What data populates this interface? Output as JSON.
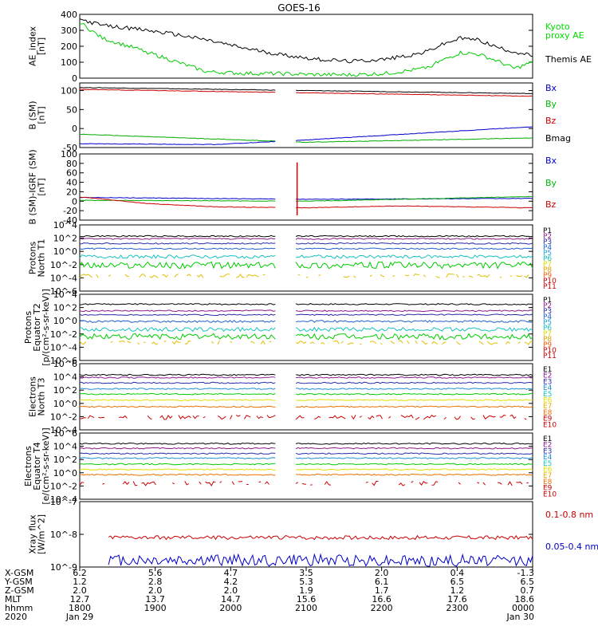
{
  "chart_data": {
    "type": "line",
    "title": "GOES-16",
    "panels": [
      {
        "id": "ae",
        "ylabel": [
          "AE_index",
          "[nT]"
        ],
        "scale": "linear",
        "ylim": [
          0,
          400
        ],
        "ticks": [
          0,
          100,
          200,
          300,
          400
        ],
        "tick_labels": [
          "0",
          "100",
          "200",
          "300",
          "400"
        ],
        "series_labels": [
          {
            "text": "Kyoto",
            "color": "#00dd00"
          },
          {
            "text": "proxy AE",
            "color": "#00dd00"
          },
          {
            "text": "Themis AE",
            "color": "#000000"
          }
        ],
        "series": [
          {
            "name": "Themis AE",
            "color": "#000000",
            "x": [
              0,
              0.05,
              0.12,
              0.2,
              0.28,
              0.36,
              0.44,
              0.52,
              0.6,
              0.68,
              0.76,
              0.8,
              0.84,
              0.88,
              0.92,
              0.96,
              1
            ],
            "values": [
              370,
              330,
              310,
              280,
              240,
              190,
              150,
              120,
              105,
              120,
              160,
              210,
              250,
              240,
              195,
              165,
              140
            ]
          },
          {
            "name": "Kyoto proxy AE",
            "color": "#00cc00",
            "x": [
              0,
              0.05,
              0.12,
              0.2,
              0.28,
              0.36,
              0.44,
              0.52,
              0.6,
              0.68,
              0.76,
              0.8,
              0.84,
              0.88,
              0.92,
              0.96,
              1
            ],
            "values": [
              350,
              250,
              190,
              115,
              40,
              30,
              28,
              22,
              20,
              30,
              60,
              110,
              160,
              150,
              110,
              60,
              100
            ]
          }
        ]
      },
      {
        "id": "bsm",
        "ylabel": [
          "B (SM)",
          "[nT]"
        ],
        "scale": "linear",
        "ylim": [
          -50,
          120
        ],
        "ticks": [
          -50,
          0,
          50,
          100
        ],
        "tick_labels": [
          "-50",
          "0",
          "50",
          "100"
        ],
        "series_labels": [
          {
            "text": "Bx",
            "color": "#0000cc"
          },
          {
            "text": "By",
            "color": "#00bb00"
          },
          {
            "text": "Bz",
            "color": "#cc0000"
          },
          {
            "text": "Bmag",
            "color": "#000000"
          }
        ],
        "gap": [
          0.435,
          0.475
        ],
        "series": [
          {
            "name": "Bmag",
            "color": "#000000",
            "x": [
              0,
              1
            ],
            "values": [
              108,
              92
            ]
          },
          {
            "name": "Bz",
            "color": "#cc0000",
            "x": [
              0,
              1
            ],
            "values": [
              103,
              85
            ]
          },
          {
            "name": "By",
            "color": "#00aa00",
            "x": [
              0,
              0.5,
              1
            ],
            "values": [
              -15,
              -36,
              -25
            ]
          },
          {
            "name": "Bx",
            "color": "#0000cc",
            "x": [
              0,
              0.3,
              0.5,
              1
            ],
            "values": [
              -40,
              -42,
              -30,
              5
            ]
          }
        ]
      },
      {
        "id": "bigrf",
        "ylabel": [
          "B (SM)-IGRF (SM)",
          "[nT]"
        ],
        "scale": "linear",
        "ylim": [
          -40,
          100
        ],
        "ticks": [
          -40,
          -20,
          0,
          20,
          40,
          60,
          80,
          100
        ],
        "tick_labels": [
          "-40",
          "-20",
          "0",
          "20",
          "40",
          "60",
          "80",
          "100"
        ],
        "series_labels": [
          {
            "text": "Bx",
            "color": "#0000cc"
          },
          {
            "text": "By",
            "color": "#00bb00"
          },
          {
            "text": "Bz",
            "color": "#cc0000"
          }
        ],
        "gap": [
          0.435,
          0.475
        ],
        "series": [
          {
            "name": "Bx",
            "color": "#0000cc",
            "x": [
              0,
              0.5,
              1
            ],
            "values": [
              8,
              4,
              6
            ]
          },
          {
            "name": "By",
            "color": "#00aa00",
            "x": [
              0,
              0.5,
              1
            ],
            "values": [
              2,
              0,
              10
            ]
          },
          {
            "name": "Bz",
            "color": "#cc0000",
            "x": [
              0,
              0.15,
              0.3,
              0.5,
              0.7,
              1
            ],
            "values": [
              9,
              -5,
              -12,
              -14,
              -10,
              -14
            ]
          }
        ],
        "spike": {
          "x": 0.48,
          "values": [
            82,
            -30
          ],
          "color": "#cc0000"
        }
      },
      {
        "id": "pn",
        "ylabel": [
          "Protons",
          "North T1"
        ],
        "scale": "log",
        "ylim": [
          -6,
          4
        ],
        "ticks": [
          4,
          2,
          0,
          -2,
          -4,
          -6
        ],
        "tick_labels": [
          "10^4",
          "10^2",
          "10^0",
          "10^-2",
          "10^-4",
          "10^-6"
        ],
        "channels": [
          {
            "label": "P1",
            "color": "#000000"
          },
          {
            "label": "P2",
            "color": "#8a1a8a"
          },
          {
            "label": "P3",
            "color": "#2a2aaa"
          },
          {
            "label": "P4",
            "color": "#1f5fd0"
          },
          {
            "label": "P5",
            "color": "#1fa0e0"
          },
          {
            "label": "P6",
            "color": "#18c0c0"
          },
          {
            "label": "P7",
            "color": "#e0e000"
          },
          {
            "label": "P8",
            "color": "#e0a000"
          },
          {
            "label": "P9",
            "color": "#ee6000"
          },
          {
            "label": "P10",
            "color": "#cc0000"
          },
          {
            "label": "P11",
            "color": "#cc0000"
          }
        ],
        "gap": [
          0.435,
          0.475
        ],
        "series": [
          {
            "name": "P1",
            "color": "#000000",
            "level": 2.3,
            "jitter": 0.1
          },
          {
            "name": "P2",
            "color": "#8a1a8a",
            "level": 1.9,
            "jitter": 0.1
          },
          {
            "name": "P3",
            "color": "#2a2aaa",
            "level": 1.2,
            "jitter": 0.1
          },
          {
            "name": "P4",
            "color": "#1f5fd0",
            "level": 0.4,
            "jitter": 0.1
          },
          {
            "name": "P5",
            "color": "#18c0c0",
            "level": -0.8,
            "jitter": 0.25
          },
          {
            "name": "P6",
            "color": "#00cc00",
            "level": -2.1,
            "jitter": 0.5
          },
          {
            "name": "P7",
            "color": "#e0c000",
            "level": -3.7,
            "jitter": 0.3,
            "sparse": true
          }
        ]
      },
      {
        "id": "pe",
        "ylabel": [
          "Protons",
          "Equator T2",
          "[p/(cm²-s-sr-keV)]"
        ],
        "scale": "log",
        "ylim": [
          -6,
          4
        ],
        "ticks": [
          4,
          2,
          0,
          -2,
          -4,
          -6
        ],
        "tick_labels": [
          "10^4",
          "10^2",
          "10^0",
          "10^-2",
          "10^-4",
          "10^-6"
        ],
        "channels": [
          {
            "label": "P1",
            "color": "#000000"
          },
          {
            "label": "P2",
            "color": "#8a1a8a"
          },
          {
            "label": "P3",
            "color": "#2a2aaa"
          },
          {
            "label": "P4",
            "color": "#1f5fd0"
          },
          {
            "label": "P5",
            "color": "#1fa0e0"
          },
          {
            "label": "P6",
            "color": "#18c0c0"
          },
          {
            "label": "P7",
            "color": "#e0e000"
          },
          {
            "label": "P8",
            "color": "#e0a000"
          },
          {
            "label": "P9",
            "color": "#ee6000"
          },
          {
            "label": "P10",
            "color": "#cc0000"
          },
          {
            "label": "P11",
            "color": "#cc0000"
          }
        ],
        "gap": [
          0.435,
          0.475
        ],
        "series": [
          {
            "name": "P1",
            "color": "#000000",
            "level": 2.5,
            "jitter": 0.1
          },
          {
            "name": "P2",
            "color": "#8a1a8a",
            "level": 1.5,
            "jitter": 0.1
          },
          {
            "name": "P3",
            "color": "#2a2aaa",
            "level": 0.9,
            "jitter": 0.1
          },
          {
            "name": "P4",
            "color": "#1f5fd0",
            "level": -0.1,
            "jitter": 0.15
          },
          {
            "name": "P5",
            "color": "#18c0c0",
            "level": -1.3,
            "jitter": 0.3
          },
          {
            "name": "P6",
            "color": "#00cc00",
            "level": -2.4,
            "jitter": 0.45
          },
          {
            "name": "P7",
            "color": "#e0c000",
            "level": -3.3,
            "jitter": 0.3,
            "sparse": true
          }
        ]
      },
      {
        "id": "en",
        "ylabel": [
          "Electrons",
          "North T3"
        ],
        "scale": "log",
        "ylim": [
          -4,
          6
        ],
        "ticks": [
          6,
          4,
          2,
          0,
          -2,
          -4
        ],
        "tick_labels": [
          "10^6",
          "10^4",
          "10^2",
          "10^0",
          "10^-2",
          "10^-4"
        ],
        "channels": [
          {
            "label": "E1",
            "color": "#000000"
          },
          {
            "label": "E2",
            "color": "#8a1a8a"
          },
          {
            "label": "E3",
            "color": "#2a2aaa"
          },
          {
            "label": "E4",
            "color": "#1f8fd0"
          },
          {
            "label": "E5",
            "color": "#18c0c0"
          },
          {
            "label": "E6",
            "color": "#e0e000"
          },
          {
            "label": "E7",
            "color": "#e0b000"
          },
          {
            "label": "E8",
            "color": "#ee7000"
          },
          {
            "label": "E9",
            "color": "#cc0000"
          },
          {
            "label": "E10",
            "color": "#cc0000"
          }
        ],
        "gap": [
          0.435,
          0.475
        ],
        "series": [
          {
            "name": "E1",
            "color": "#000000",
            "level": 4.3,
            "jitter": 0.1
          },
          {
            "name": "E2",
            "color": "#8a1a8a",
            "level": 3.9,
            "jitter": 0.1
          },
          {
            "name": "E3",
            "color": "#2a2aaa",
            "level": 3.1,
            "jitter": 0.1
          },
          {
            "name": "E4",
            "color": "#1f8fd0",
            "level": 2.2,
            "jitter": 0.1
          },
          {
            "name": "E5",
            "color": "#00cc00",
            "level": 1.4,
            "jitter": 0.1
          },
          {
            "name": "E6",
            "color": "#e0e000",
            "level": 0.5,
            "jitter": 0.1
          },
          {
            "name": "E7",
            "color": "#ee7000",
            "level": -0.5,
            "jitter": 0.1
          },
          {
            "name": "E8",
            "color": "#cc0000",
            "level": -2.1,
            "jitter": 0.35,
            "sparse": true
          }
        ]
      },
      {
        "id": "ee",
        "ylabel": [
          "Electrons",
          "Equator T4",
          "[e/(cm²-s-sr-keV)]"
        ],
        "scale": "log",
        "ylim": [
          -4,
          6
        ],
        "ticks": [
          6,
          4,
          2,
          0,
          -2,
          -4
        ],
        "tick_labels": [
          "10^6",
          "10^4",
          "10^2",
          "10^0",
          "10^-2",
          "10^-4"
        ],
        "channels": [
          {
            "label": "E1",
            "color": "#000000"
          },
          {
            "label": "E2",
            "color": "#8a1a8a"
          },
          {
            "label": "E3",
            "color": "#2a2aaa"
          },
          {
            "label": "E4",
            "color": "#1f8fd0"
          },
          {
            "label": "E5",
            "color": "#18c0c0"
          },
          {
            "label": "E6",
            "color": "#e0e000"
          },
          {
            "label": "E7",
            "color": "#e0b000"
          },
          {
            "label": "E8",
            "color": "#ee7000"
          },
          {
            "label": "E9",
            "color": "#cc0000"
          },
          {
            "label": "E10",
            "color": "#cc0000"
          }
        ],
        "gap": [
          0.435,
          0.475
        ],
        "series": [
          {
            "name": "E1",
            "color": "#000000",
            "level": 4.4,
            "jitter": 0.1
          },
          {
            "name": "E2",
            "color": "#8a1a8a",
            "level": 3.7,
            "jitter": 0.1
          },
          {
            "name": "E3",
            "color": "#2a2aaa",
            "level": 2.9,
            "jitter": 0.1
          },
          {
            "name": "E4",
            "color": "#1f8fd0",
            "level": 2.2,
            "jitter": 0.1
          },
          {
            "name": "E5",
            "color": "#00cc00",
            "level": 1.3,
            "jitter": 0.1
          },
          {
            "name": "E6",
            "color": "#e0e000",
            "level": 0.5,
            "jitter": 0.1
          },
          {
            "name": "E7",
            "color": "#ee7000",
            "level": -0.3,
            "jitter": 0.1
          },
          {
            "name": "E8",
            "color": "#cc0000",
            "level": -1.6,
            "jitter": 0.35,
            "sparse": true
          }
        ]
      },
      {
        "id": "xray",
        "ylabel": [
          "Xray flux",
          "[W/m^2]"
        ],
        "scale": "log",
        "ylim": [
          -9,
          -7
        ],
        "ticks": [
          -7,
          -8,
          -9
        ],
        "tick_labels": [
          "10^-7",
          "10^-8",
          "10^-9"
        ],
        "series_labels": [
          {
            "text": "0.1-0.8 nm",
            "color": "#cc0000"
          },
          {
            "text": "0.05-0.4 nm",
            "color": "#0000cc"
          }
        ],
        "series": [
          {
            "name": "0.1-0.8 nm",
            "color": "#cc0000",
            "level": -8.1,
            "jitter": 0.06,
            "start": 0.06
          },
          {
            "name": "0.05-0.4 nm",
            "color": "#0000cc",
            "level": -8.8,
            "jitter": 0.18,
            "start": 0.06
          }
        ]
      }
    ],
    "x_axis": {
      "row_labels": [
        "X-GSM",
        "Y-GSM",
        "Z-GSM",
        "MLT",
        "hhmm",
        "2020"
      ],
      "columns": [
        [
          "6.2",
          "1.2",
          "2.0",
          "12.7",
          "1800",
          "Jan 29"
        ],
        [
          "5.6",
          "2.8",
          "2.0",
          "13.7",
          "1900",
          ""
        ],
        [
          "4.7",
          "4.2",
          "2.0",
          "14.7",
          "2000",
          ""
        ],
        [
          "3.5",
          "5.3",
          "1.9",
          "15.6",
          "2100",
          ""
        ],
        [
          "2.0",
          "6.1",
          "1.7",
          "16.6",
          "2200",
          ""
        ],
        [
          "0.4",
          "6.5",
          "1.2",
          "17.6",
          "2300",
          ""
        ],
        [
          "-1.3",
          "6.5",
          "0.7",
          "18.6",
          "0000",
          "Jan 30"
        ]
      ]
    }
  }
}
